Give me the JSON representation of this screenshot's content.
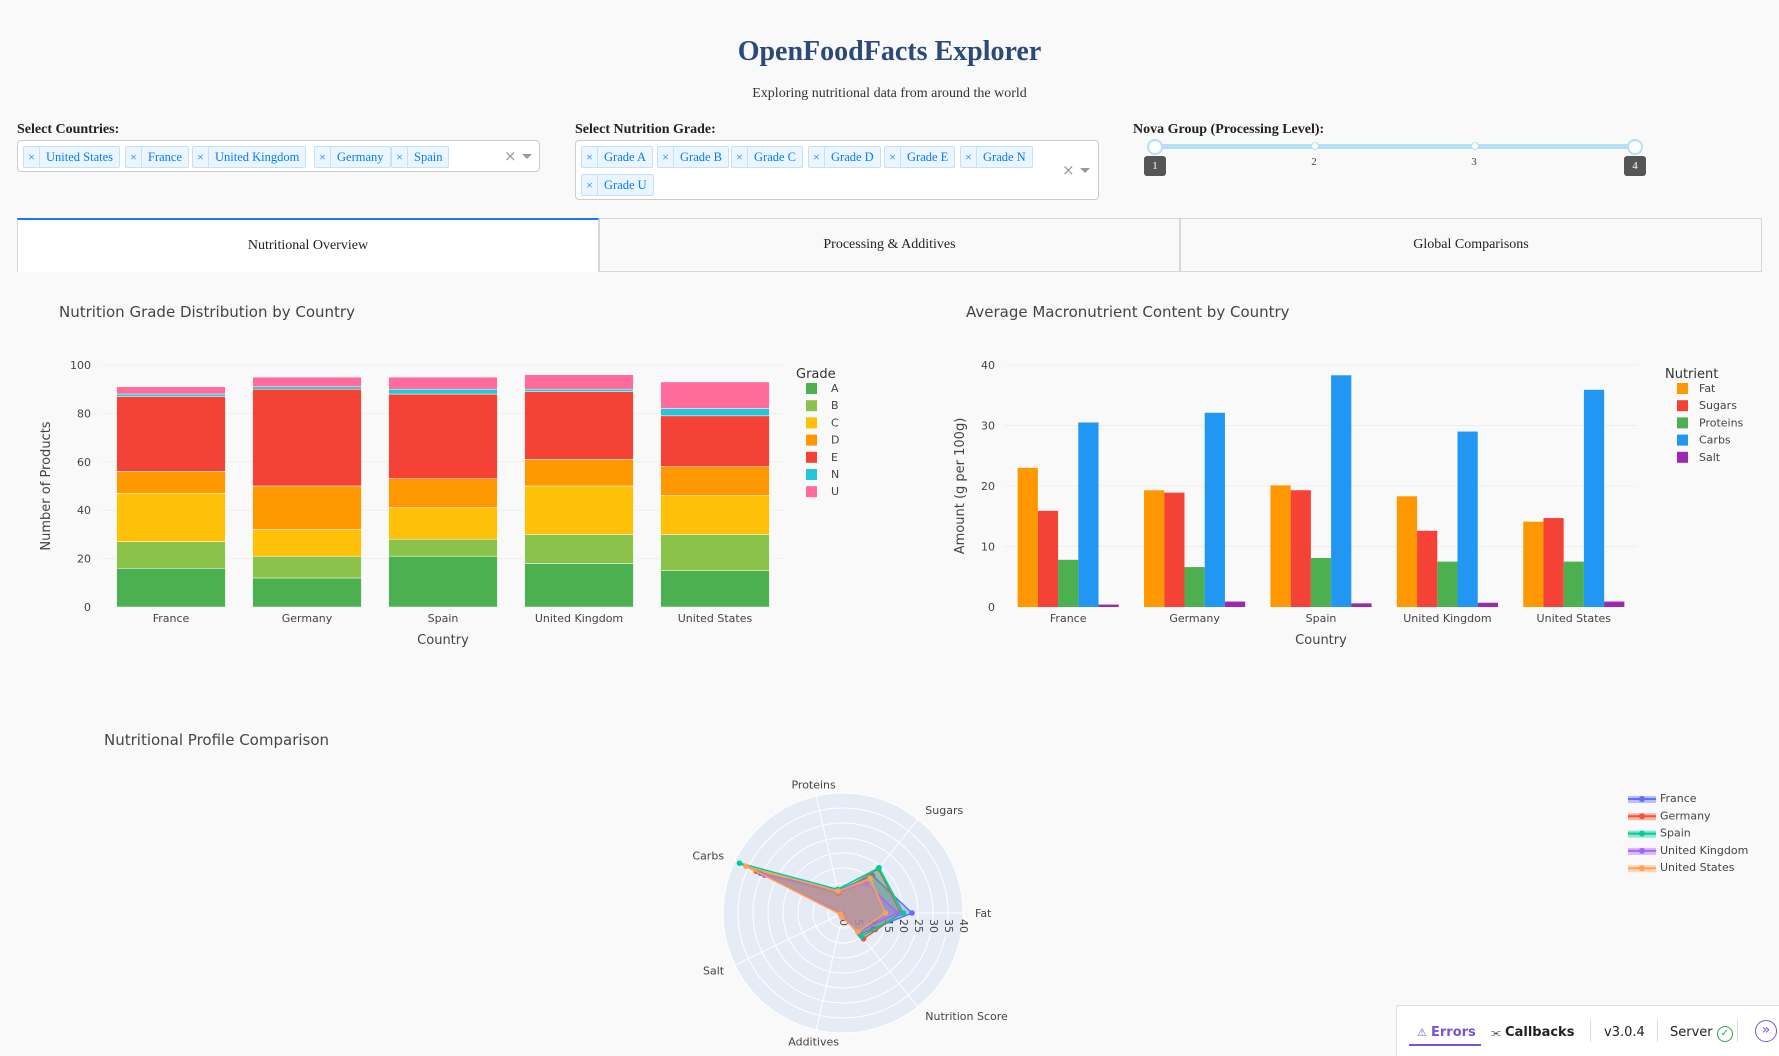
{
  "header": {
    "title": "OpenFoodFacts Explorer",
    "subtitle": "Exploring nutritional data from around the world"
  },
  "controls": {
    "countries": {
      "label": "Select Countries:",
      "selected": [
        "United States",
        "France",
        "United Kingdom",
        "Germany",
        "Spain"
      ]
    },
    "grades": {
      "label": "Select Nutrition Grade:",
      "selected": [
        "Grade A",
        "Grade B",
        "Grade C",
        "Grade D",
        "Grade E",
        "Grade N",
        "Grade U"
      ]
    },
    "nova": {
      "label": "Nova Group (Processing Level):",
      "marks": [
        "1",
        "2",
        "3",
        "4"
      ],
      "range_low": "1",
      "range_high": "4"
    },
    "clear_glyph": "×",
    "remove_glyph": "×"
  },
  "tabs": [
    {
      "label": "Nutritional Overview",
      "active": true
    },
    {
      "label": "Processing & Additives",
      "active": false
    },
    {
      "label": "Global Comparisons",
      "active": false
    }
  ],
  "charts": {
    "grade_distribution": {
      "title": "Nutrition Grade Distribution by Country"
    },
    "macronutrients": {
      "title": "Average Macronutrient Content by Country"
    },
    "profile": {
      "title": "Nutritional Profile Comparison"
    }
  },
  "colors": {
    "A": "#4caf50",
    "B": "#8bc34a",
    "C": "#ffc107",
    "D": "#ff9800",
    "E": "#f44336",
    "N": "#26c6da",
    "U": "#ff6b9a",
    "Fat": "#ff9800",
    "Sugars": "#f44336",
    "Proteins": "#4caf50",
    "Carbs": "#2196f3",
    "Salt": "#9c27b0",
    "France": "#636efa",
    "Germany": "#ef553b",
    "Spain": "#00cc96",
    "United Kingdom": "#ab63fa",
    "United States": "#ffa15a"
  },
  "chart_data": [
    {
      "type": "bar",
      "stacked": true,
      "title": "Nutrition Grade Distribution by Country",
      "xlabel": "Country",
      "ylabel": "Number of Products",
      "ylim": [
        0,
        100
      ],
      "yticks": [
        0,
        20,
        40,
        60,
        80,
        100
      ],
      "legend_title": "Grade",
      "categories": [
        "France",
        "Germany",
        "Spain",
        "United Kingdom",
        "United States"
      ],
      "series": [
        {
          "name": "A",
          "values": [
            16,
            12,
            21,
            18,
            15
          ]
        },
        {
          "name": "B",
          "values": [
            11,
            9,
            7,
            12,
            15
          ]
        },
        {
          "name": "C",
          "values": [
            20,
            11,
            13,
            20,
            16
          ]
        },
        {
          "name": "D",
          "values": [
            9,
            18,
            12,
            11,
            12
          ]
        },
        {
          "name": "E",
          "values": [
            31,
            40,
            35,
            28,
            21
          ]
        },
        {
          "name": "N",
          "values": [
            1,
            1,
            2,
            1,
            3
          ]
        },
        {
          "name": "U",
          "values": [
            3,
            4,
            5,
            6,
            11
          ]
        }
      ]
    },
    {
      "type": "bar",
      "grouped": true,
      "title": "Average Macronutrient Content by Country",
      "xlabel": "Country",
      "ylabel": "Amount (g per 100g)",
      "ylim": [
        0,
        40
      ],
      "yticks": [
        0,
        10,
        20,
        30,
        40
      ],
      "legend_title": "Nutrient",
      "categories": [
        "France",
        "Germany",
        "Spain",
        "United Kingdom",
        "United States"
      ],
      "series": [
        {
          "name": "Fat",
          "values": [
            23.0,
            19.3,
            20.1,
            18.3,
            14.1
          ]
        },
        {
          "name": "Sugars",
          "values": [
            15.9,
            18.9,
            19.3,
            12.6,
            14.7
          ]
        },
        {
          "name": "Proteins",
          "values": [
            7.8,
            6.6,
            8.1,
            7.5,
            7.5
          ]
        },
        {
          "name": "Carbs",
          "values": [
            30.5,
            32.1,
            38.3,
            29.0,
            35.9
          ]
        },
        {
          "name": "Salt",
          "values": [
            0.4,
            0.9,
            0.6,
            0.7,
            0.9
          ]
        }
      ]
    },
    {
      "type": "radar",
      "title": "Nutritional Profile Comparison",
      "axes": [
        "Fat",
        "Sugars",
        "Proteins",
        "Carbs",
        "Salt",
        "Additives",
        "Nutrition Score"
      ],
      "rlim": [
        0,
        40
      ],
      "rticks": [
        0,
        5,
        10,
        15,
        20,
        25,
        30,
        35,
        40
      ],
      "series": [
        {
          "name": "France",
          "values": [
            23.0,
            15.9,
            7.8,
            30.5,
            0.4,
            1.0,
            9.0
          ]
        },
        {
          "name": "Germany",
          "values": [
            19.3,
            18.9,
            6.6,
            32.1,
            0.9,
            1.1,
            11.0
          ]
        },
        {
          "name": "Spain",
          "values": [
            20.1,
            19.3,
            8.1,
            38.3,
            0.6,
            1.0,
            10.0
          ]
        },
        {
          "name": "United Kingdom",
          "values": [
            18.3,
            12.6,
            7.5,
            29.0,
            0.7,
            1.2,
            8.0
          ]
        },
        {
          "name": "United States",
          "values": [
            14.1,
            14.7,
            7.5,
            35.9,
            0.9,
            1.5,
            8.0
          ]
        }
      ]
    }
  ],
  "devtools": {
    "errors_label": "Errors",
    "callbacks_label": "Callbacks",
    "version": "v3.0.4",
    "server_label": "Server",
    "warning_glyph": "⚠",
    "callbacks_glyph": "⫘",
    "check_glyph": "✓",
    "expand_glyph": "»"
  }
}
